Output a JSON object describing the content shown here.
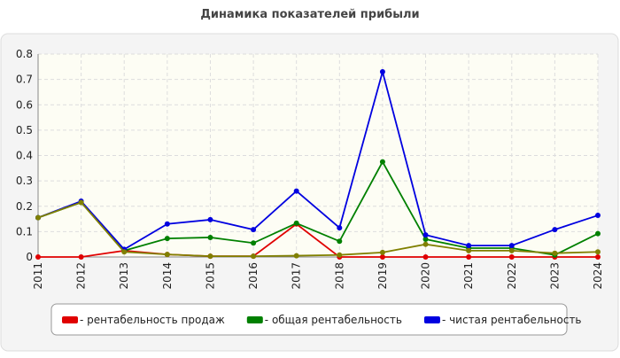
{
  "chart_data": {
    "type": "line",
    "title": "Динамика показателей прибыли",
    "categories": [
      "2011",
      "2012",
      "2013",
      "2014",
      "2015",
      "2016",
      "2017",
      "2018",
      "2019",
      "2020",
      "2021",
      "2022",
      "2023",
      "2024"
    ],
    "series": [
      {
        "name": "- рентабельность продаж",
        "color": "#e00000",
        "values": [
          0,
          0,
          0.025,
          0.01,
          0.003,
          0.003,
          0.13,
          0,
          0,
          0,
          0,
          0,
          0,
          0
        ]
      },
      {
        "name": "- общая рентабельность",
        "color": "#008000",
        "values": [
          0.155,
          0.215,
          0.025,
          0.073,
          0.077,
          0.055,
          0.133,
          0.062,
          0.375,
          0.07,
          0.035,
          0.035,
          0.008,
          0.092
        ]
      },
      {
        "name": "- чистая рентабельность",
        "color": "#0000e0",
        "values": [
          0.155,
          0.22,
          0.03,
          0.13,
          0.147,
          0.108,
          0.26,
          0.115,
          0.73,
          0.087,
          0.045,
          0.045,
          0.108,
          0.164
        ]
      },
      {
        "color": "#808000",
        "values": [
          0.155,
          0.215,
          0.02,
          0.01,
          0.003,
          0.003,
          0.005,
          0.008,
          0.018,
          0.05,
          0.025,
          0.025,
          0.015,
          0.02
        ]
      }
    ],
    "ylim": [
      0,
      0.8
    ],
    "yticks": [
      0,
      0.1,
      0.2,
      0.3,
      0.4,
      0.5,
      0.6,
      0.7,
      0.8
    ],
    "grid": true
  }
}
